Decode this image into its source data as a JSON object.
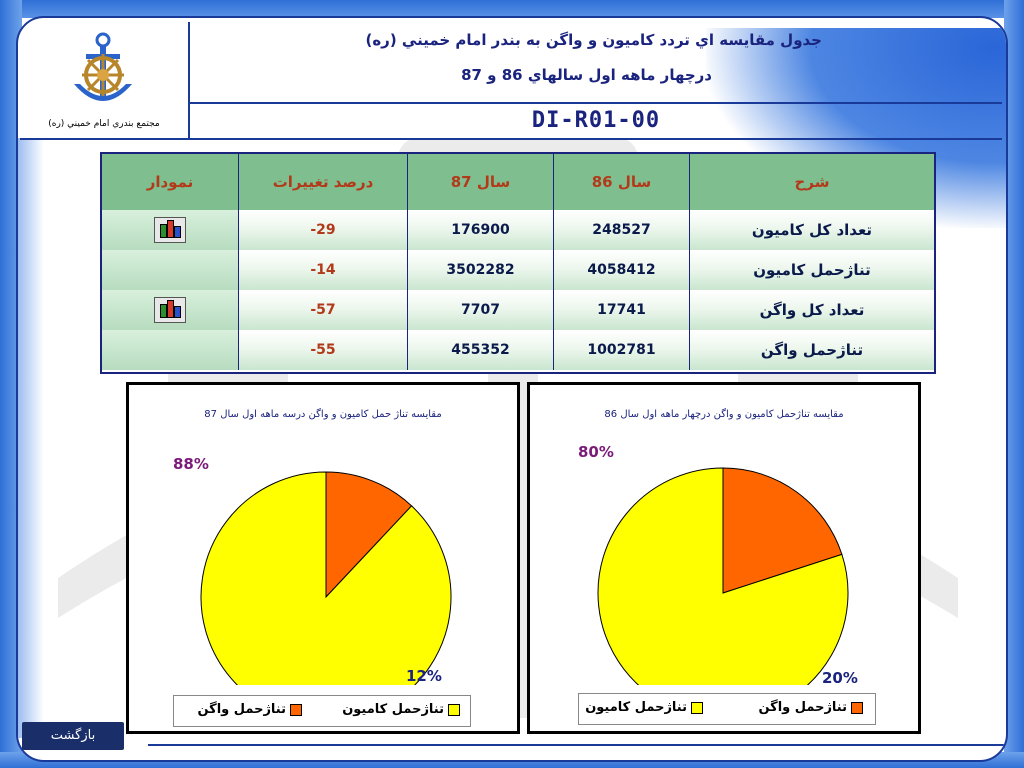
{
  "header": {
    "org_caption": "مجتمع بندري امام خميني (ره)",
    "title_line1": "جدول مقايسه اي تردد كاميون و واگن به بندر امام خميني (ره)",
    "title_line2": "درچهار ماهه اول سالهاي 86 و 87",
    "doc_code": "DI-R01-00"
  },
  "table": {
    "columns": [
      "شرح",
      "سال 86",
      "سال 87",
      "درصد تغييرات",
      "نمودار"
    ],
    "rows": [
      {
        "desc": "تعداد كل كاميون",
        "y86": "248527",
        "y87": "176900",
        "pct": "-29",
        "has_chart": true
      },
      {
        "desc": "تناژحمل كاميون",
        "y86": "4058412",
        "y87": "3502282",
        "pct": "-14",
        "has_chart": false
      },
      {
        "desc": "تعداد كل واگن",
        "y86": "17741",
        "y87": "7707",
        "pct": "-57",
        "has_chart": true
      },
      {
        "desc": "تناژحمل واگن",
        "y86": "1002781",
        "y87": "455352",
        "pct": "-55",
        "has_chart": false
      }
    ]
  },
  "colors": {
    "truck": "#ffff00",
    "wagon": "#ff6600",
    "header_green": "#7fbe8e",
    "navy": "#1a237e"
  },
  "chart_data": [
    {
      "type": "pie",
      "title": "مقايسه تناژ حمل كاميون و واگن درسه ماهه اول سال 87",
      "categories": [
        "تناژحمل كاميون",
        "تناژحمل واگن"
      ],
      "values": [
        88,
        12
      ],
      "labels": [
        "88%",
        "12%"
      ],
      "legend": "bottom"
    },
    {
      "type": "pie",
      "title": "مقايسه تناژحمل كاميون و واگن درچهار ماهه اول سال 86",
      "categories": [
        "تناژحمل كاميون",
        "تناژحمل واگن"
      ],
      "values": [
        80,
        20
      ],
      "labels": [
        "80%",
        "20%"
      ],
      "legend": "bottom"
    }
  ],
  "nav": {
    "back_label": "بازگشت"
  }
}
